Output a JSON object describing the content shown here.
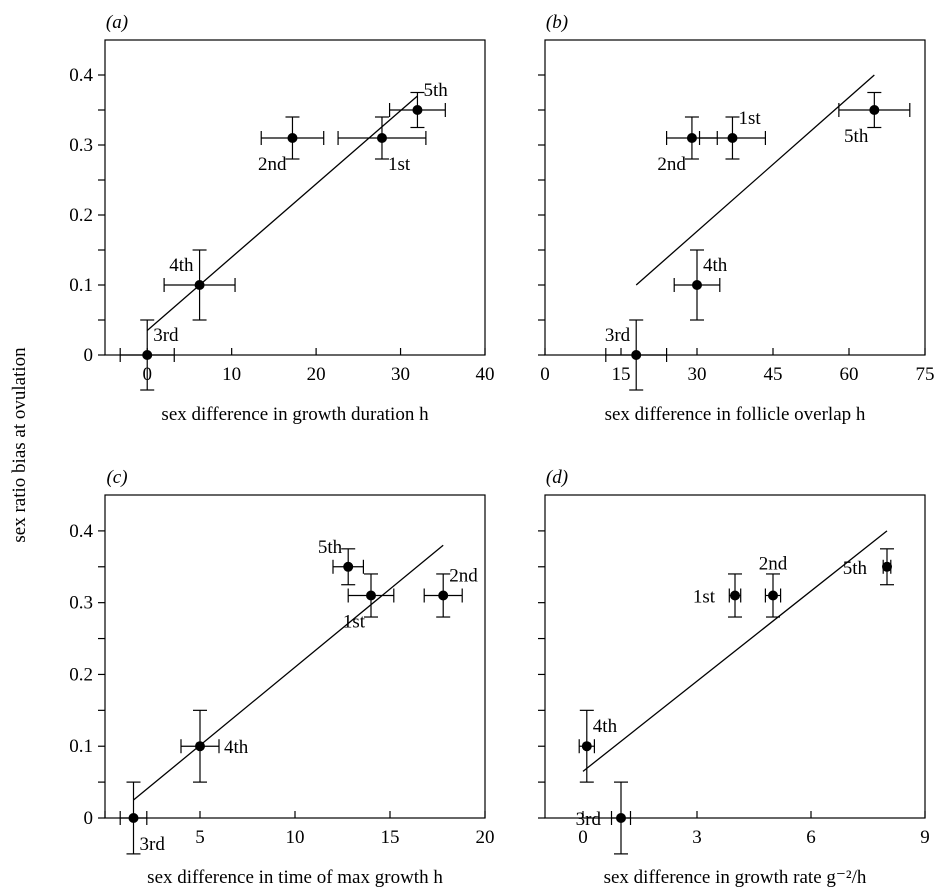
{
  "figure": {
    "shared_ylabel": "sex ratio bias at ovulation"
  },
  "chart_data": [
    {
      "type": "scatter",
      "panel": "(a)",
      "xlabel": "sex difference in growth duration h",
      "ylabel": "sex ratio bias at ovulation",
      "xlim": [
        -5,
        40
      ],
      "ylim": [
        0,
        0.45
      ],
      "xticks": [
        0,
        10,
        20,
        30,
        40
      ],
      "xtick_labels": [
        "0",
        "10",
        "20",
        "30",
        "40"
      ],
      "yticks": [
        0,
        0.1,
        0.2,
        0.3,
        0.4
      ],
      "ytick_labels": [
        "0",
        "0.1",
        "0.2",
        "0.3",
        "0.4"
      ],
      "extra_yticks": [
        0.05,
        0.15,
        0.25,
        0.35
      ],
      "fit_line": {
        "x": [
          0,
          32
        ],
        "y": [
          0.035,
          0.37
        ]
      },
      "points": [
        {
          "label": "1st",
          "x": 27.8,
          "y": 0.31,
          "xerr": 5.2,
          "yerr": 0.03,
          "label_pos": "below-right"
        },
        {
          "label": "2nd",
          "x": 17.2,
          "y": 0.31,
          "xerr": 3.7,
          "yerr": 0.03,
          "label_pos": "below-left"
        },
        {
          "label": "3rd",
          "x": 0,
          "y": 0,
          "xerr": 3.2,
          "yerr": 0.05,
          "label_pos": "above-right"
        },
        {
          "label": "4th",
          "x": 6.2,
          "y": 0.1,
          "xerr": 4.2,
          "yerr": 0.05,
          "label_pos": "above-left"
        },
        {
          "label": "5th",
          "x": 32,
          "y": 0.35,
          "xerr": 3.3,
          "yerr": 0.025,
          "label_pos": "above-right"
        }
      ]
    },
    {
      "type": "scatter",
      "panel": "(b)",
      "xlabel": "sex difference in follicle overlap h",
      "ylabel": "",
      "xlim": [
        0,
        75
      ],
      "ylim": [
        0,
        0.45
      ],
      "xticks": [
        0,
        15,
        30,
        45,
        60,
        75
      ],
      "xtick_labels": [
        "0",
        "15",
        "30",
        "45",
        "60",
        "75"
      ],
      "yticks": [
        0,
        0.1,
        0.2,
        0.3,
        0.4
      ],
      "ytick_labels": [
        "",
        "",
        "",
        "",
        ""
      ],
      "extra_yticks": [
        0.05,
        0.15,
        0.25,
        0.35
      ],
      "fit_line": {
        "x": [
          18,
          65
        ],
        "y": [
          0.1,
          0.4
        ]
      },
      "points": [
        {
          "label": "1st",
          "x": 37,
          "y": 0.31,
          "xerr": 6.5,
          "yerr": 0.03,
          "label_pos": "above-right"
        },
        {
          "label": "2nd",
          "x": 29,
          "y": 0.31,
          "xerr": 5,
          "yerr": 0.03,
          "label_pos": "below-left"
        },
        {
          "label": "3rd",
          "x": 18,
          "y": 0,
          "xerr": 6,
          "yerr": 0.05,
          "label_pos": "above-left"
        },
        {
          "label": "4th",
          "x": 30,
          "y": 0.1,
          "xerr": 4.5,
          "yerr": 0.05,
          "label_pos": "above-right"
        },
        {
          "label": "5th",
          "x": 65,
          "y": 0.35,
          "xerr": 7,
          "yerr": 0.025,
          "label_pos": "below-left"
        }
      ]
    },
    {
      "type": "scatter",
      "panel": "(c)",
      "xlabel": "sex difference in time of max growth  h",
      "ylabel": "sex ratio bias at ovulation",
      "xlim": [
        0,
        20
      ],
      "ylim": [
        0,
        0.45
      ],
      "xticks": [
        0,
        5,
        10,
        15,
        20
      ],
      "xtick_labels": [
        "",
        "5",
        "10",
        "15",
        "20"
      ],
      "yticks": [
        0,
        0.1,
        0.2,
        0.3,
        0.4
      ],
      "ytick_labels": [
        "0",
        "0.1",
        "0.2",
        "0.3",
        "0.4"
      ],
      "extra_yticks": [
        0.05,
        0.15,
        0.25,
        0.35
      ],
      "fit_line": {
        "x": [
          1.5,
          17.8
        ],
        "y": [
          0.025,
          0.38
        ]
      },
      "points": [
        {
          "label": "1st",
          "x": 14,
          "y": 0.31,
          "xerr": 1.2,
          "yerr": 0.03,
          "label_pos": "below-left"
        },
        {
          "label": "2nd",
          "x": 17.8,
          "y": 0.31,
          "xerr": 1,
          "yerr": 0.03,
          "label_pos": "above-right"
        },
        {
          "label": "3rd",
          "x": 1.5,
          "y": 0,
          "xerr": 0.7,
          "yerr": 0.05,
          "label_pos": "below-right"
        },
        {
          "label": "4th",
          "x": 5,
          "y": 0.1,
          "xerr": 1,
          "yerr": 0.05,
          "label_pos": "right"
        },
        {
          "label": "5th",
          "x": 12.8,
          "y": 0.35,
          "xerr": 0.8,
          "yerr": 0.025,
          "label_pos": "above-left"
        }
      ]
    },
    {
      "type": "scatter",
      "panel": "(d)",
      "xlabel": "sex difference in growth rate g⁻²/h",
      "ylabel": "",
      "xlim": [
        -1,
        9
      ],
      "ylim": [
        0,
        0.45
      ],
      "xticks": [
        0,
        3,
        6,
        9
      ],
      "xtick_labels": [
        "0",
        "3",
        "6",
        "9"
      ],
      "yticks": [
        0,
        0.1,
        0.2,
        0.3,
        0.4
      ],
      "ytick_labels": [
        "",
        "",
        "",
        "",
        ""
      ],
      "extra_yticks": [
        0.05,
        0.15,
        0.25,
        0.35
      ],
      "fit_line": {
        "x": [
          0,
          8
        ],
        "y": [
          0.065,
          0.4
        ]
      },
      "points": [
        {
          "label": "1st",
          "x": 4,
          "y": 0.31,
          "xerr": 0.15,
          "yerr": 0.03,
          "label_pos": "left"
        },
        {
          "label": "2nd",
          "x": 5,
          "y": 0.31,
          "xerr": 0.2,
          "yerr": 0.03,
          "label_pos": "above"
        },
        {
          "label": "3rd",
          "x": 1,
          "y": 0,
          "xerr": 0.25,
          "yerr": 0.05,
          "label_pos": "left"
        },
        {
          "label": "4th",
          "x": 0.1,
          "y": 0.1,
          "xerr": 0.2,
          "yerr": 0.05,
          "label_pos": "above-right"
        },
        {
          "label": "5th",
          "x": 8,
          "y": 0.35,
          "xerr": 0.1,
          "yerr": 0.025,
          "label_pos": "left"
        }
      ]
    }
  ]
}
